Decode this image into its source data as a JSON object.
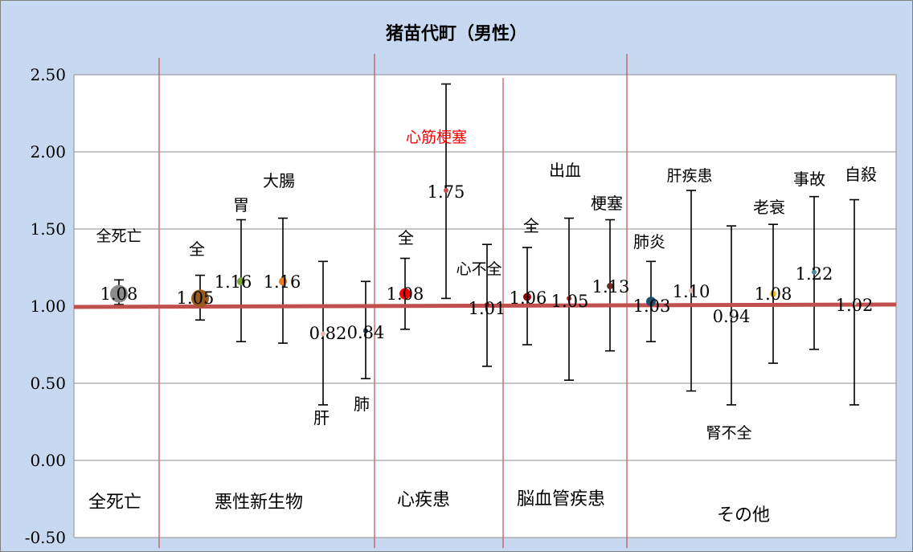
{
  "chart_data": {
    "type": "scatter",
    "title": "猪苗代町（男性）",
    "ylim": [
      -0.5,
      2.5
    ],
    "yticks": [
      "-0.50",
      "0.00",
      "0.50",
      "1.00",
      "1.50",
      "2.00",
      "2.50"
    ],
    "reference_line": 1.0,
    "grid": true,
    "groups": [
      "全死亡",
      "悪性新生物",
      "心疾患",
      "脳血管疾患",
      "その他"
    ],
    "points": [
      {
        "category": "全死亡",
        "value": 1.08,
        "label": "1.08",
        "ci": [
          1.01,
          1.17
        ],
        "color": "#8c8c8c",
        "name_label": "全死亡",
        "size": 11
      },
      {
        "category": "全",
        "value": 1.05,
        "label": "1.05",
        "ci": [
          0.91,
          1.2
        ],
        "color": "#985b1e",
        "name_label": "全",
        "size": 11
      },
      {
        "category": "胃",
        "value": 1.16,
        "label": "1.16",
        "ci": [
          0.77,
          1.56
        ],
        "color": "#78a23c",
        "name_label": "胃",
        "size": 5
      },
      {
        "category": "大腸",
        "value": 1.16,
        "label": "1.16",
        "ci": [
          0.76,
          1.57
        ],
        "color": "#e67e22",
        "name_label": "大腸",
        "size": 5
      },
      {
        "category": "肝",
        "value": 0.82,
        "label": "0.82",
        "ci": [
          0.36,
          1.29
        ],
        "color": "#e8b8b8",
        "name_label": "肝",
        "size": 3
      },
      {
        "category": "肺",
        "value": 0.84,
        "label": "0.84",
        "ci": [
          0.53,
          1.16
        ],
        "color": "#1f3a5f",
        "name_label": "肺",
        "size": 3
      },
      {
        "category": "全",
        "value": 1.08,
        "label": "1.08",
        "ci": [
          0.85,
          1.31
        ],
        "color": "#ff0000",
        "name_label": "全",
        "size": 7
      },
      {
        "category": "心筋梗塞",
        "value": 1.75,
        "label": "1.75",
        "ci": [
          1.05,
          2.44
        ],
        "color": "#c0504d",
        "name_label": "心筋梗塞",
        "size": 3
      },
      {
        "category": "心不全",
        "value": 1.01,
        "label": "1.01",
        "ci": [
          0.61,
          1.4
        ],
        "color": "#8b1a1a",
        "name_label": "心不全",
        "size": 3
      },
      {
        "category": "全",
        "value": 1.06,
        "label": "1.06",
        "ci": [
          0.75,
          1.38
        ],
        "color": "#8b0000",
        "name_label": "全",
        "size": 5
      },
      {
        "category": "出血",
        "value": 1.05,
        "label": "1.05",
        "ci": [
          0.52,
          1.57
        ],
        "color": "#cc2222",
        "name_label": "出血",
        "size": 3
      },
      {
        "category": "梗塞",
        "value": 1.13,
        "label": "1.13",
        "ci": [
          0.71,
          1.56
        ],
        "color": "#6b2a20",
        "name_label": "梗塞",
        "size": 4
      },
      {
        "category": "肺炎",
        "value": 1.03,
        "label": "1.03",
        "ci": [
          0.77,
          1.29
        ],
        "color": "#1f5070",
        "name_label": "肺炎",
        "size": 6
      },
      {
        "category": "肝疾患",
        "value": 1.1,
        "label": "1.10",
        "ci": [
          0.45,
          1.75
        ],
        "color": "#e8b8b8",
        "name_label": "肝疾患",
        "size": 3
      },
      {
        "category": "腎不全",
        "value": 0.94,
        "label": "0.94",
        "ci": [
          0.36,
          1.52
        ],
        "color": "#cccccc",
        "name_label": "腎不全",
        "size": 3
      },
      {
        "category": "老衰",
        "value": 1.08,
        "label": "1.08",
        "ci": [
          0.63,
          1.53
        ],
        "color": "#e6c229",
        "name_label": "老衰",
        "size": 4
      },
      {
        "category": "事故",
        "value": 1.22,
        "label": "1.22",
        "ci": [
          0.72,
          1.71
        ],
        "color": "#4a8a9a",
        "name_label": "事故",
        "size": 3
      },
      {
        "category": "自殺",
        "value": 1.02,
        "label": "1.02",
        "ci": [
          0.36,
          1.69
        ],
        "color": "#cccccc",
        "name_label": "自殺",
        "size": 3
      }
    ],
    "colors": {
      "background": "#c6d9f0",
      "plot_area": "#ffffff",
      "reference_line": "#c0504d",
      "divider": "#c0504d",
      "highlight_label": "#ff0000"
    }
  }
}
